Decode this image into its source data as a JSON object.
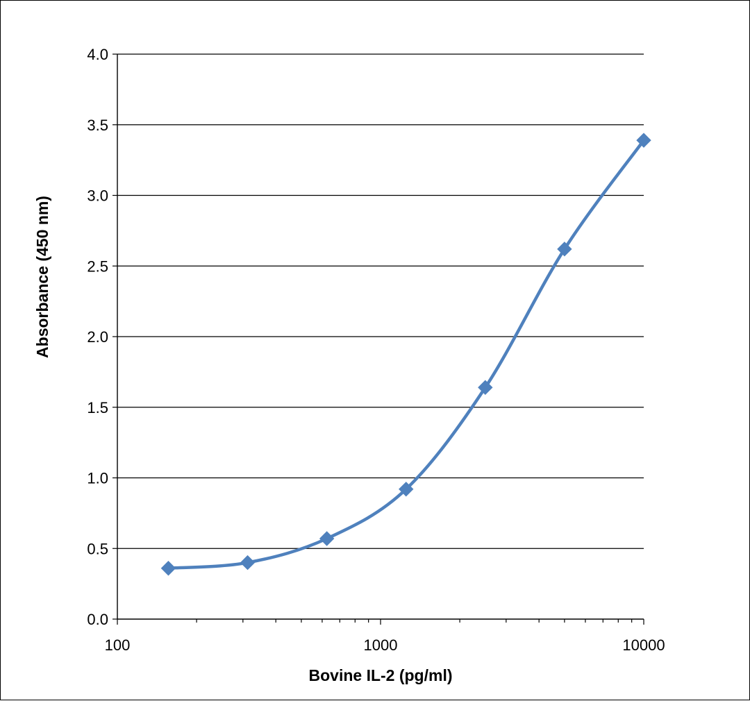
{
  "chart_data": {
    "type": "line",
    "title": "",
    "xlabel": "Bovine IL-2 (pg/ml)",
    "ylabel": "Absorbance  (450 nm)",
    "x_scale": "log",
    "xlim": [
      100,
      10000
    ],
    "ylim": [
      0,
      4
    ],
    "x_ticks": [
      "100",
      "1000",
      "10000"
    ],
    "y_ticks": [
      "0.0",
      "0.5",
      "1.0",
      "1.5",
      "2.0",
      "2.5",
      "3.0",
      "3.5",
      "4.0"
    ],
    "grid": "horizontal",
    "legend": "none",
    "series": [
      {
        "color": "#4f81bd",
        "marker": "diamond",
        "smooth": true,
        "x": [
          156.25,
          312.5,
          625,
          1250,
          2500,
          5000,
          10000
        ],
        "y": [
          0.36,
          0.4,
          0.57,
          0.92,
          1.64,
          2.62,
          3.39
        ]
      }
    ]
  }
}
